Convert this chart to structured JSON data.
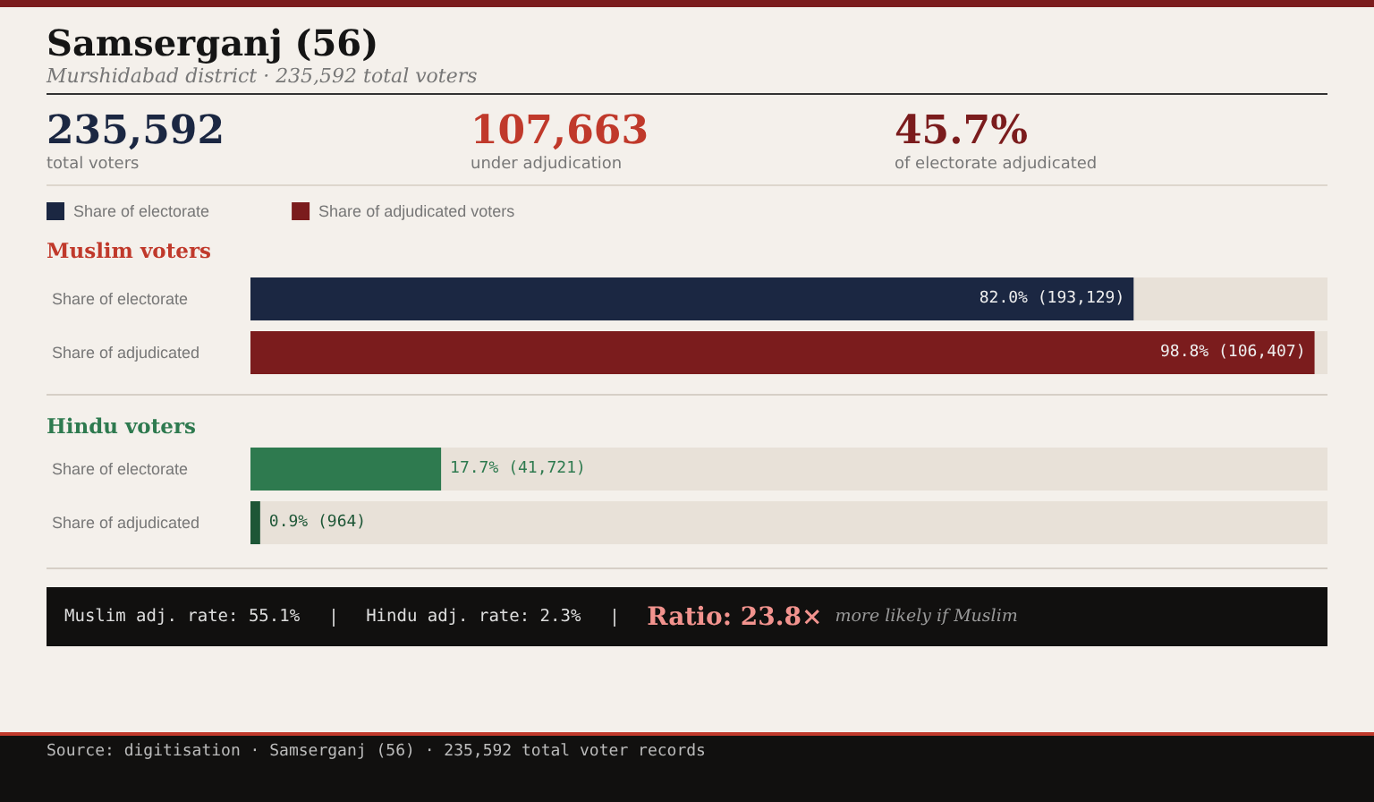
{
  "chart_data": [
    {
      "type": "other",
      "title": "Samserganj (56)",
      "subtitle": "Murshidabad district · 235,592 total voters",
      "annotations": [
        "235,592",
        "total voters",
        "107,663",
        "under adjudication",
        "45.7%",
        "of electorate adjudicated"
      ]
    },
    {
      "type": "bar",
      "title": "Muslim voters",
      "orientation": "horizontal",
      "legend": "top left",
      "grid": false,
      "tick_labels": "y",
      "categories": [
        "Share of electorate",
        "Share of adjudicated"
      ],
      "xlim": [
        0,
        100
      ],
      "series": [
        {
          "name": "Share of electorate",
          "color": "#1b2742",
          "values": [
            82.0,
            null
          ],
          "value_labels": [
            "82.0% (193,129)",
            null
          ]
        },
        {
          "name": "Share of adjudicated voters",
          "color": "#7b1c1d",
          "values": [
            null,
            98.8
          ],
          "value_labels": [
            null,
            "98.8% (106,407)"
          ]
        }
      ]
    },
    {
      "type": "bar",
      "title": "Hindu voters",
      "orientation": "horizontal",
      "grid": false,
      "tick_labels": "y",
      "categories": [
        "Share of electorate",
        "Share of adjudicated"
      ],
      "xlim": [
        0,
        100
      ],
      "values": [
        17.7,
        0.9
      ],
      "colors": [
        "#2e7a4f",
        "#1d5636"
      ],
      "value_labels": [
        "17.7% (41,721)",
        "0.9% (964)"
      ]
    },
    {
      "type": "other",
      "annotations": [
        "Muslim adj. rate: 55.1%",
        "Hindu adj. rate: 2.3%",
        "Ratio: 23.8×",
        "more likely if Muslim",
        "Source: digitisation · Samserganj (56) · 235,592 total voter records"
      ]
    }
  ]
}
